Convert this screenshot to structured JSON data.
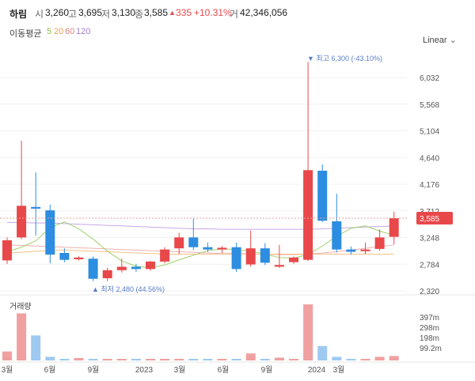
{
  "stock": {
    "name": "하림",
    "open_label": "시",
    "open": "3,260",
    "high_label": "고",
    "high": "3,695",
    "low_label": "저",
    "low": "3,130",
    "close_label": "종",
    "close": "3,585",
    "change_arrow": "▲",
    "change": "335",
    "change_pct": "+10.31%",
    "volume_label": "거",
    "volume": "42,346,056"
  },
  "moving_average": {
    "label": "이동평균",
    "periods": [
      {
        "label": "5",
        "color": "#8cc63f"
      },
      {
        "label": "20",
        "color": "#f0a050"
      },
      {
        "label": "60",
        "color": "#e08080"
      },
      {
        "label": "120",
        "color": "#a080d0"
      }
    ]
  },
  "scale_button": "Linear",
  "colors": {
    "up": "#e8484a",
    "down": "#2d8de0",
    "up_volume": "#f0a0a0",
    "down_volume": "#9ec9f0",
    "current_tag": "#e8484a"
  },
  "chart_data": {
    "type": "candlestick",
    "price_axis": {
      "ticks": [
        "6,032",
        "5,568",
        "5,104",
        "4,640",
        "4,176",
        "3,712",
        "3,248",
        "2,784",
        "2,320"
      ],
      "range": [
        2320,
        6490
      ]
    },
    "volume_axis": {
      "label": "거래량",
      "ticks": [
        "397m",
        "298m",
        "198m",
        "99.2m"
      ]
    },
    "time_axis": {
      "ticks": [
        "3월",
        "6월",
        "9월",
        "2023",
        "3월",
        "6월",
        "9월",
        "2024",
        "3월"
      ]
    },
    "current_price_tag": "3,585",
    "high_annotation": "▼ 최고 6,300 (-43.10%)",
    "low_annotation": "▲ 최저 2,480 (44.56%)",
    "candles": [
      {
        "o": 2850,
        "h": 3250,
        "l": 2790,
        "c": 3200,
        "v": 45
      },
      {
        "o": 3250,
        "h": 4930,
        "l": 3220,
        "c": 3800,
        "v": 235
      },
      {
        "o": 3780,
        "h": 4380,
        "l": 3280,
        "c": 3750,
        "v": 125
      },
      {
        "o": 3720,
        "h": 3820,
        "l": 2800,
        "c": 2950,
        "v": 18
      },
      {
        "o": 2980,
        "h": 3060,
        "l": 2820,
        "c": 2860,
        "v": 8
      },
      {
        "o": 2870,
        "h": 2920,
        "l": 2850,
        "c": 2900,
        "v": 12
      },
      {
        "o": 2880,
        "h": 2920,
        "l": 2490,
        "c": 2530,
        "v": 6
      },
      {
        "o": 2540,
        "h": 2720,
        "l": 2490,
        "c": 2680,
        "v": 4
      },
      {
        "o": 2680,
        "h": 2880,
        "l": 2640,
        "c": 2740,
        "v": 3
      },
      {
        "o": 2740,
        "h": 2790,
        "l": 2650,
        "c": 2700,
        "v": 2
      },
      {
        "o": 2700,
        "h": 2840,
        "l": 2670,
        "c": 2830,
        "v": 2
      },
      {
        "o": 2830,
        "h": 3080,
        "l": 2800,
        "c": 3040,
        "v": 3
      },
      {
        "o": 3060,
        "h": 3330,
        "l": 2960,
        "c": 3250,
        "v": 4
      },
      {
        "o": 3250,
        "h": 3580,
        "l": 3030,
        "c": 3080,
        "v": 6
      },
      {
        "o": 3080,
        "h": 3160,
        "l": 3000,
        "c": 3040,
        "v": 3
      },
      {
        "o": 3040,
        "h": 3100,
        "l": 2980,
        "c": 3070,
        "v": 2
      },
      {
        "o": 3080,
        "h": 3160,
        "l": 2650,
        "c": 2700,
        "v": 4
      },
      {
        "o": 2780,
        "h": 3370,
        "l": 2740,
        "c": 3060,
        "v": 35
      },
      {
        "o": 3060,
        "h": 3150,
        "l": 2770,
        "c": 2810,
        "v": 5
      },
      {
        "o": 2740,
        "h": 3120,
        "l": 2720,
        "c": 2770,
        "v": 14
      },
      {
        "o": 2820,
        "h": 2920,
        "l": 2790,
        "c": 2900,
        "v": 7
      },
      {
        "o": 2860,
        "h": 6300,
        "l": 2840,
        "c": 4420,
        "v": 280
      },
      {
        "o": 4410,
        "h": 4520,
        "l": 3520,
        "c": 3540,
        "v": 72
      },
      {
        "o": 3530,
        "h": 4010,
        "l": 2990,
        "c": 3040,
        "v": 18
      },
      {
        "o": 3040,
        "h": 3090,
        "l": 2950,
        "c": 3000,
        "v": 4
      },
      {
        "o": 3010,
        "h": 3160,
        "l": 2960,
        "c": 3040,
        "v": 3
      },
      {
        "o": 3050,
        "h": 3390,
        "l": 3020,
        "c": 3250,
        "v": 18
      },
      {
        "o": 3260,
        "h": 3695,
        "l": 3130,
        "c": 3585,
        "v": 22
      }
    ],
    "ma5": [
      3000,
      3080,
      3190,
      3420,
      3520,
      3400,
      3220,
      3010,
      2840,
      2750,
      2720,
      2770,
      2860,
      2940,
      3020,
      3050,
      3040,
      3010,
      2960,
      2900,
      2890,
      2950,
      3100,
      3270,
      3410,
      3450,
      3360,
      3285
    ],
    "ma20": [
      2980,
      2990,
      3010,
      3020,
      3030,
      3020,
      3010,
      3000,
      2990,
      2980,
      2970,
      2960,
      2960,
      2960,
      2960,
      2960,
      2960,
      2960,
      2960,
      2960,
      2960,
      2960,
      2960,
      2960,
      2960,
      2960,
      2960,
      2960
    ],
    "ma60": [
      3120,
      3110,
      3100,
      3090,
      3080,
      3070,
      3060,
      3050,
      3040,
      3030,
      3020,
      3010,
      3000,
      2990,
      2980,
      2970,
      2970,
      2960,
      2960,
      2950,
      2950,
      2960,
      2980,
      3000,
      3030,
      3060,
      3090,
      3120
    ],
    "ma120": [
      3510,
      3510,
      3500,
      3500,
      3490,
      3480,
      3470,
      3460,
      3450,
      3440,
      3430,
      3420,
      3410,
      3400,
      3400,
      3390,
      3390,
      3390,
      3390,
      3390,
      3390,
      3390,
      3400,
      3410,
      3420,
      3430,
      3440,
      3450
    ]
  }
}
